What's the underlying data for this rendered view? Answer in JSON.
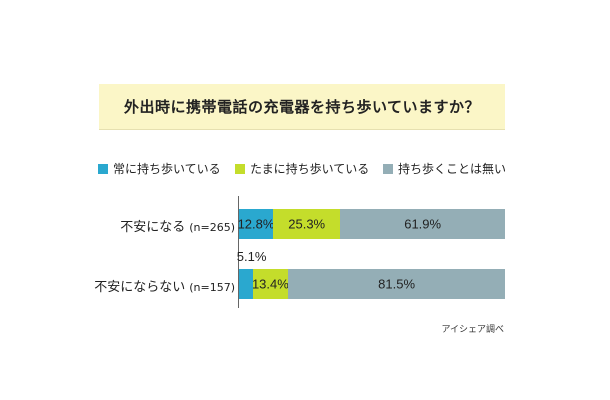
{
  "chart_data": {
    "type": "bar",
    "orientation": "horizontal",
    "stacked": true,
    "title": "外出時に携帯電話の充電器を持ち歩いていますか？",
    "categories": [
      {
        "label": "不安になる",
        "n": "(n=265)"
      },
      {
        "label": "不安にならない",
        "n": "(n=157)"
      }
    ],
    "series": [
      {
        "name": "常に持ち歩いている",
        "color": "#2aa8cf",
        "values": [
          12.8,
          5.1
        ],
        "labels": [
          "12.8%",
          "5.1%"
        ]
      },
      {
        "name": "たまに持ち歩いている",
        "color": "#c4dd2b",
        "values": [
          25.3,
          13.4
        ],
        "labels": [
          "25.3%",
          "13.4%"
        ]
      },
      {
        "name": "持ち歩くことは無い",
        "color": "#94aeb6",
        "values": [
          61.9,
          81.5
        ],
        "labels": [
          "61.9%",
          "81.5%"
        ]
      }
    ],
    "xlim": [
      0,
      100
    ],
    "legend_position": "top"
  },
  "source": "アイシェア調べ"
}
